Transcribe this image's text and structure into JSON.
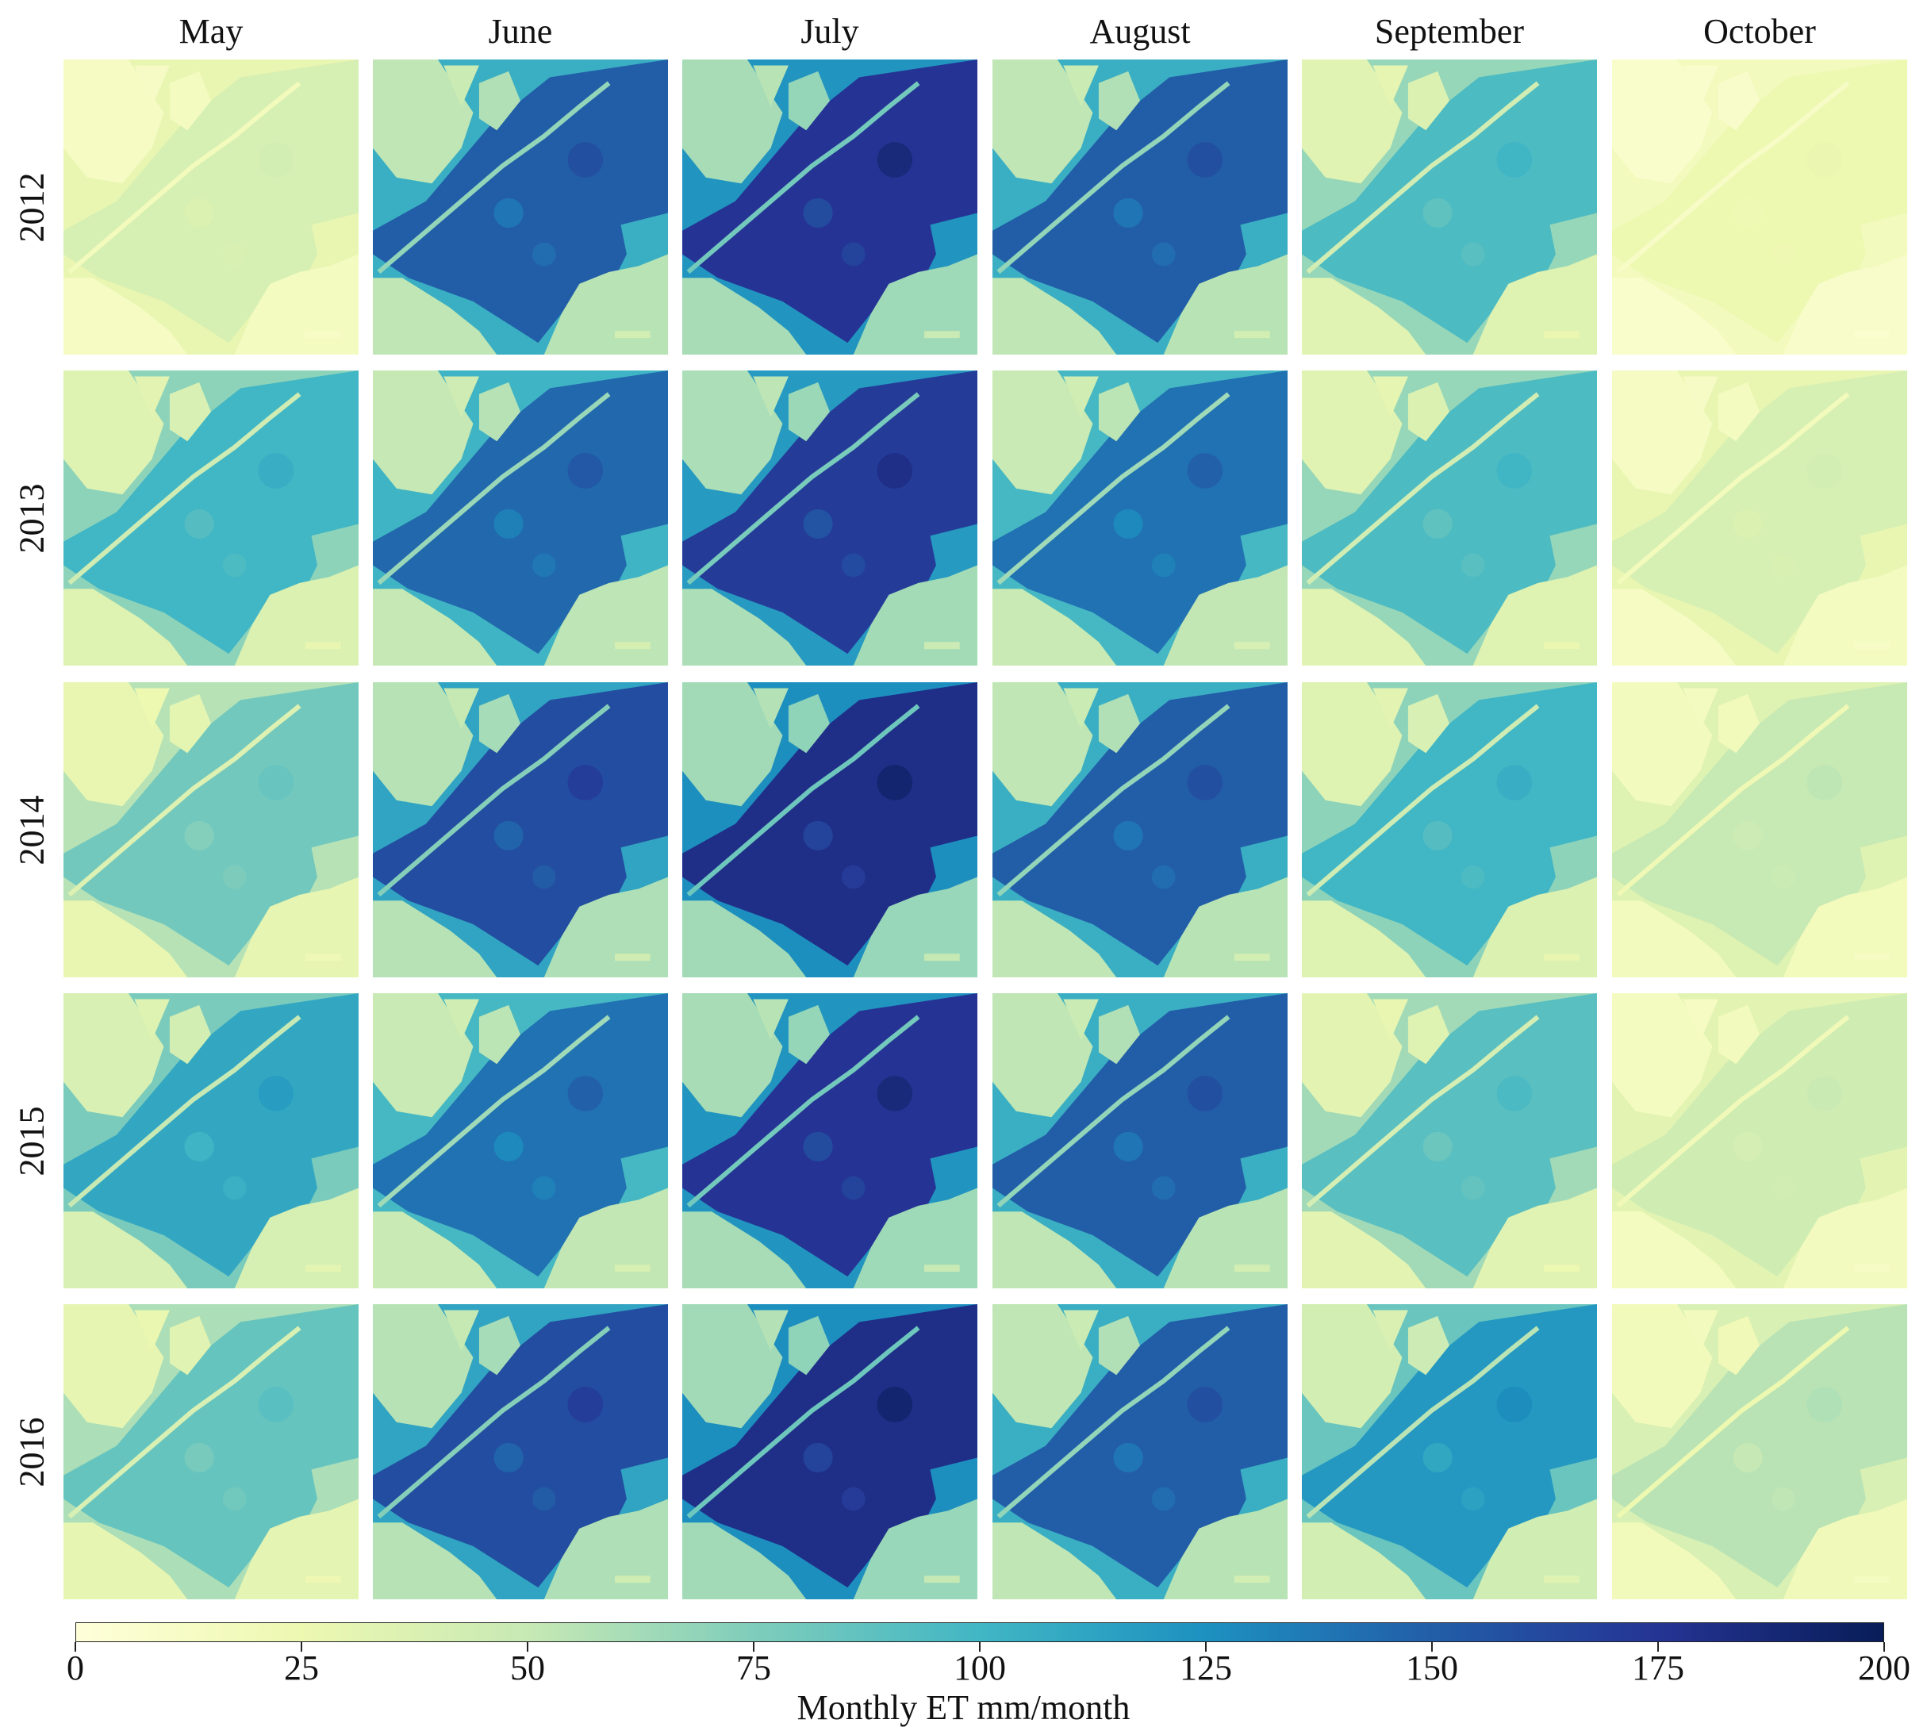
{
  "chart_data": {
    "type": "heatmap",
    "columns": [
      "May",
      "June",
      "July",
      "August",
      "September",
      "October"
    ],
    "rows": [
      "2012",
      "2013",
      "2014",
      "2015",
      "2016"
    ],
    "panel_mean_et": [
      [
        40,
        150,
        175,
        150,
        95,
        25
      ],
      [
        100,
        145,
        170,
        140,
        95,
        40
      ],
      [
        80,
        160,
        180,
        150,
        100,
        50
      ],
      [
        110,
        140,
        175,
        150,
        90,
        45
      ],
      [
        85,
        160,
        180,
        150,
        120,
        55
      ]
    ],
    "colorbar": {
      "label": "Monthly ET mm/month",
      "min": 0,
      "max": 200,
      "ticks": [
        0,
        25,
        50,
        75,
        100,
        125,
        150,
        175,
        200
      ],
      "colormap": "YlGnBu",
      "stops": [
        "#ffffd9",
        "#edf8b1",
        "#c7e9b4",
        "#7fcdbb",
        "#41b6c4",
        "#1d91c0",
        "#225ea8",
        "#253494",
        "#081d58"
      ]
    }
  }
}
